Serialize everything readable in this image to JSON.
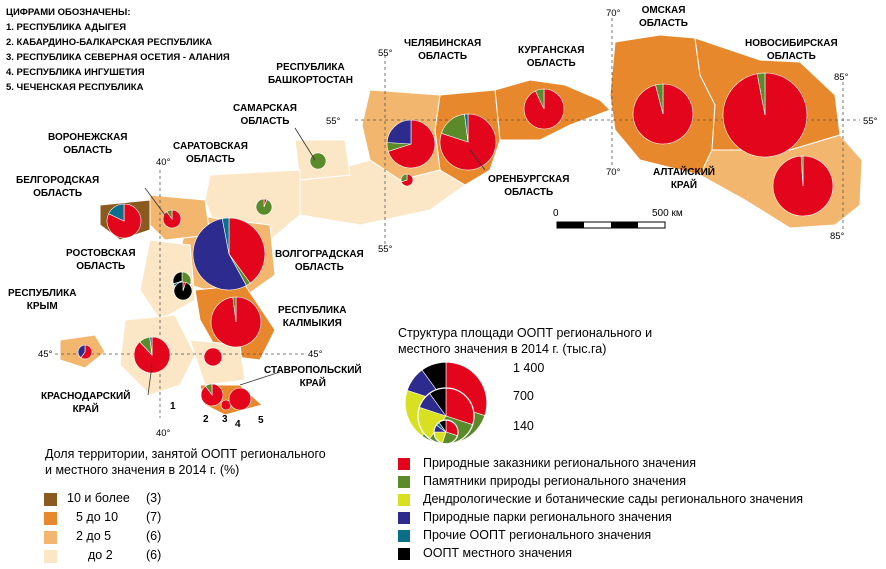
{
  "notes": {
    "title": "ЦИФРАМИ ОБОЗНАЧЕНЫ:",
    "items": [
      "1. РЕСПУБЛИКА АДЫГЕЯ",
      "2. КАБАРДИНО-БАЛКАРСКАЯ РЕСПУБЛИКА",
      "3. РЕСПУБЛИКА СЕВЕРНАЯ ОСЕТИЯ - АЛАНИЯ",
      "4. РЕСПУБЛИКА ИНГУШЕТИЯ",
      "5. ЧЕЧЕНСКАЯ РЕСПУБЛИКА"
    ]
  },
  "regions": {
    "voronezh": [
      "ВОРОНЕЖСКАЯ",
      "ОБЛАСТЬ"
    ],
    "belgorod": [
      "БЕЛГОРОДСКАЯ",
      "ОБЛАСТЬ"
    ],
    "saratov": [
      "САРАТОВСКАЯ",
      "ОБЛАСТЬ"
    ],
    "samara": [
      "САМАРСКАЯ",
      "ОБЛАСТЬ"
    ],
    "bashkortostan": [
      "РЕСПУБЛИКА",
      "БАШКОРТОСТАН"
    ],
    "chelyabinsk": [
      "ЧЕЛЯБИНСКАЯ",
      "ОБЛАСТЬ"
    ],
    "kurgan": [
      "КУРГАНСКАЯ",
      "ОБЛАСТЬ"
    ],
    "omsk": [
      "ОМСКАЯ",
      "ОБЛАСТЬ"
    ],
    "novosibirsk": [
      "НОВОСИБИРСКАЯ",
      "ОБЛАСТЬ"
    ],
    "altai": [
      "АЛТАЙСКИЙ",
      "КРАЙ"
    ],
    "orenburg": [
      "ОРЕНБУРГСКАЯ",
      "ОБЛАСТЬ"
    ],
    "rostov": [
      "РОСТОВСКАЯ",
      "ОБЛАСТЬ"
    ],
    "volgograd": [
      "ВОЛГОГРАДСКАЯ",
      "ОБЛАСТЬ"
    ],
    "crimea": [
      "РЕСПУБЛИКА",
      "КРЫМ"
    ],
    "kalmykia": [
      "РЕСПУБЛИКА",
      "КАЛМЫКИЯ"
    ],
    "stavropol": [
      "СТАВРОПОЛЬСКИЙ",
      "КРАЙ"
    ],
    "krasnodar": [
      "КРАСНОДАРСКИЙ",
      "КРАЙ"
    ]
  },
  "numbers": [
    "1",
    "2",
    "3",
    "4",
    "5"
  ],
  "coords": {
    "c40": "40°",
    "c55": "55°",
    "c70": "70°",
    "c85": "85°",
    "c45": "45°"
  },
  "scale": {
    "zero": "0",
    "max": "500 км"
  },
  "share_legend": {
    "title_line1": "Доля территории, занятой ООПТ регионального",
    "title_line2": "и местного значения в 2014 г. (%)",
    "classes": [
      {
        "label": "10 и более",
        "count": "(3)",
        "color": "#8a5a1f"
      },
      {
        "label": "5 до 10",
        "count": "(7)",
        "color": "#e8882c"
      },
      {
        "label": "2 до   5",
        "count": "(6)",
        "color": "#f2b66e"
      },
      {
        "label": "до   2",
        "count": "(6)",
        "color": "#fbe7c6"
      }
    ]
  },
  "structure_legend": {
    "title_line1": "Структура площади ООПТ регионального и",
    "title_line2": "местного значения в 2014 г. (тыс.га)",
    "size_labels": [
      "1 400",
      "700",
      "140"
    ],
    "categories": [
      {
        "label": "Природные заказники регионального значения",
        "color": "#e3051b"
      },
      {
        "label": "Памятники природы регионального значения",
        "color": "#5b8a2b"
      },
      {
        "label": "Дендрологические и ботанические сады регионального значения",
        "color": "#d9e021"
      },
      {
        "label": "Природные парки регионального значения",
        "color": "#2e2b8f"
      },
      {
        "label": "Прочие ООПТ регионального значения",
        "color": "#0b6f8c"
      },
      {
        "label": "ООПТ местного значения",
        "color": "#000000"
      }
    ]
  }
}
